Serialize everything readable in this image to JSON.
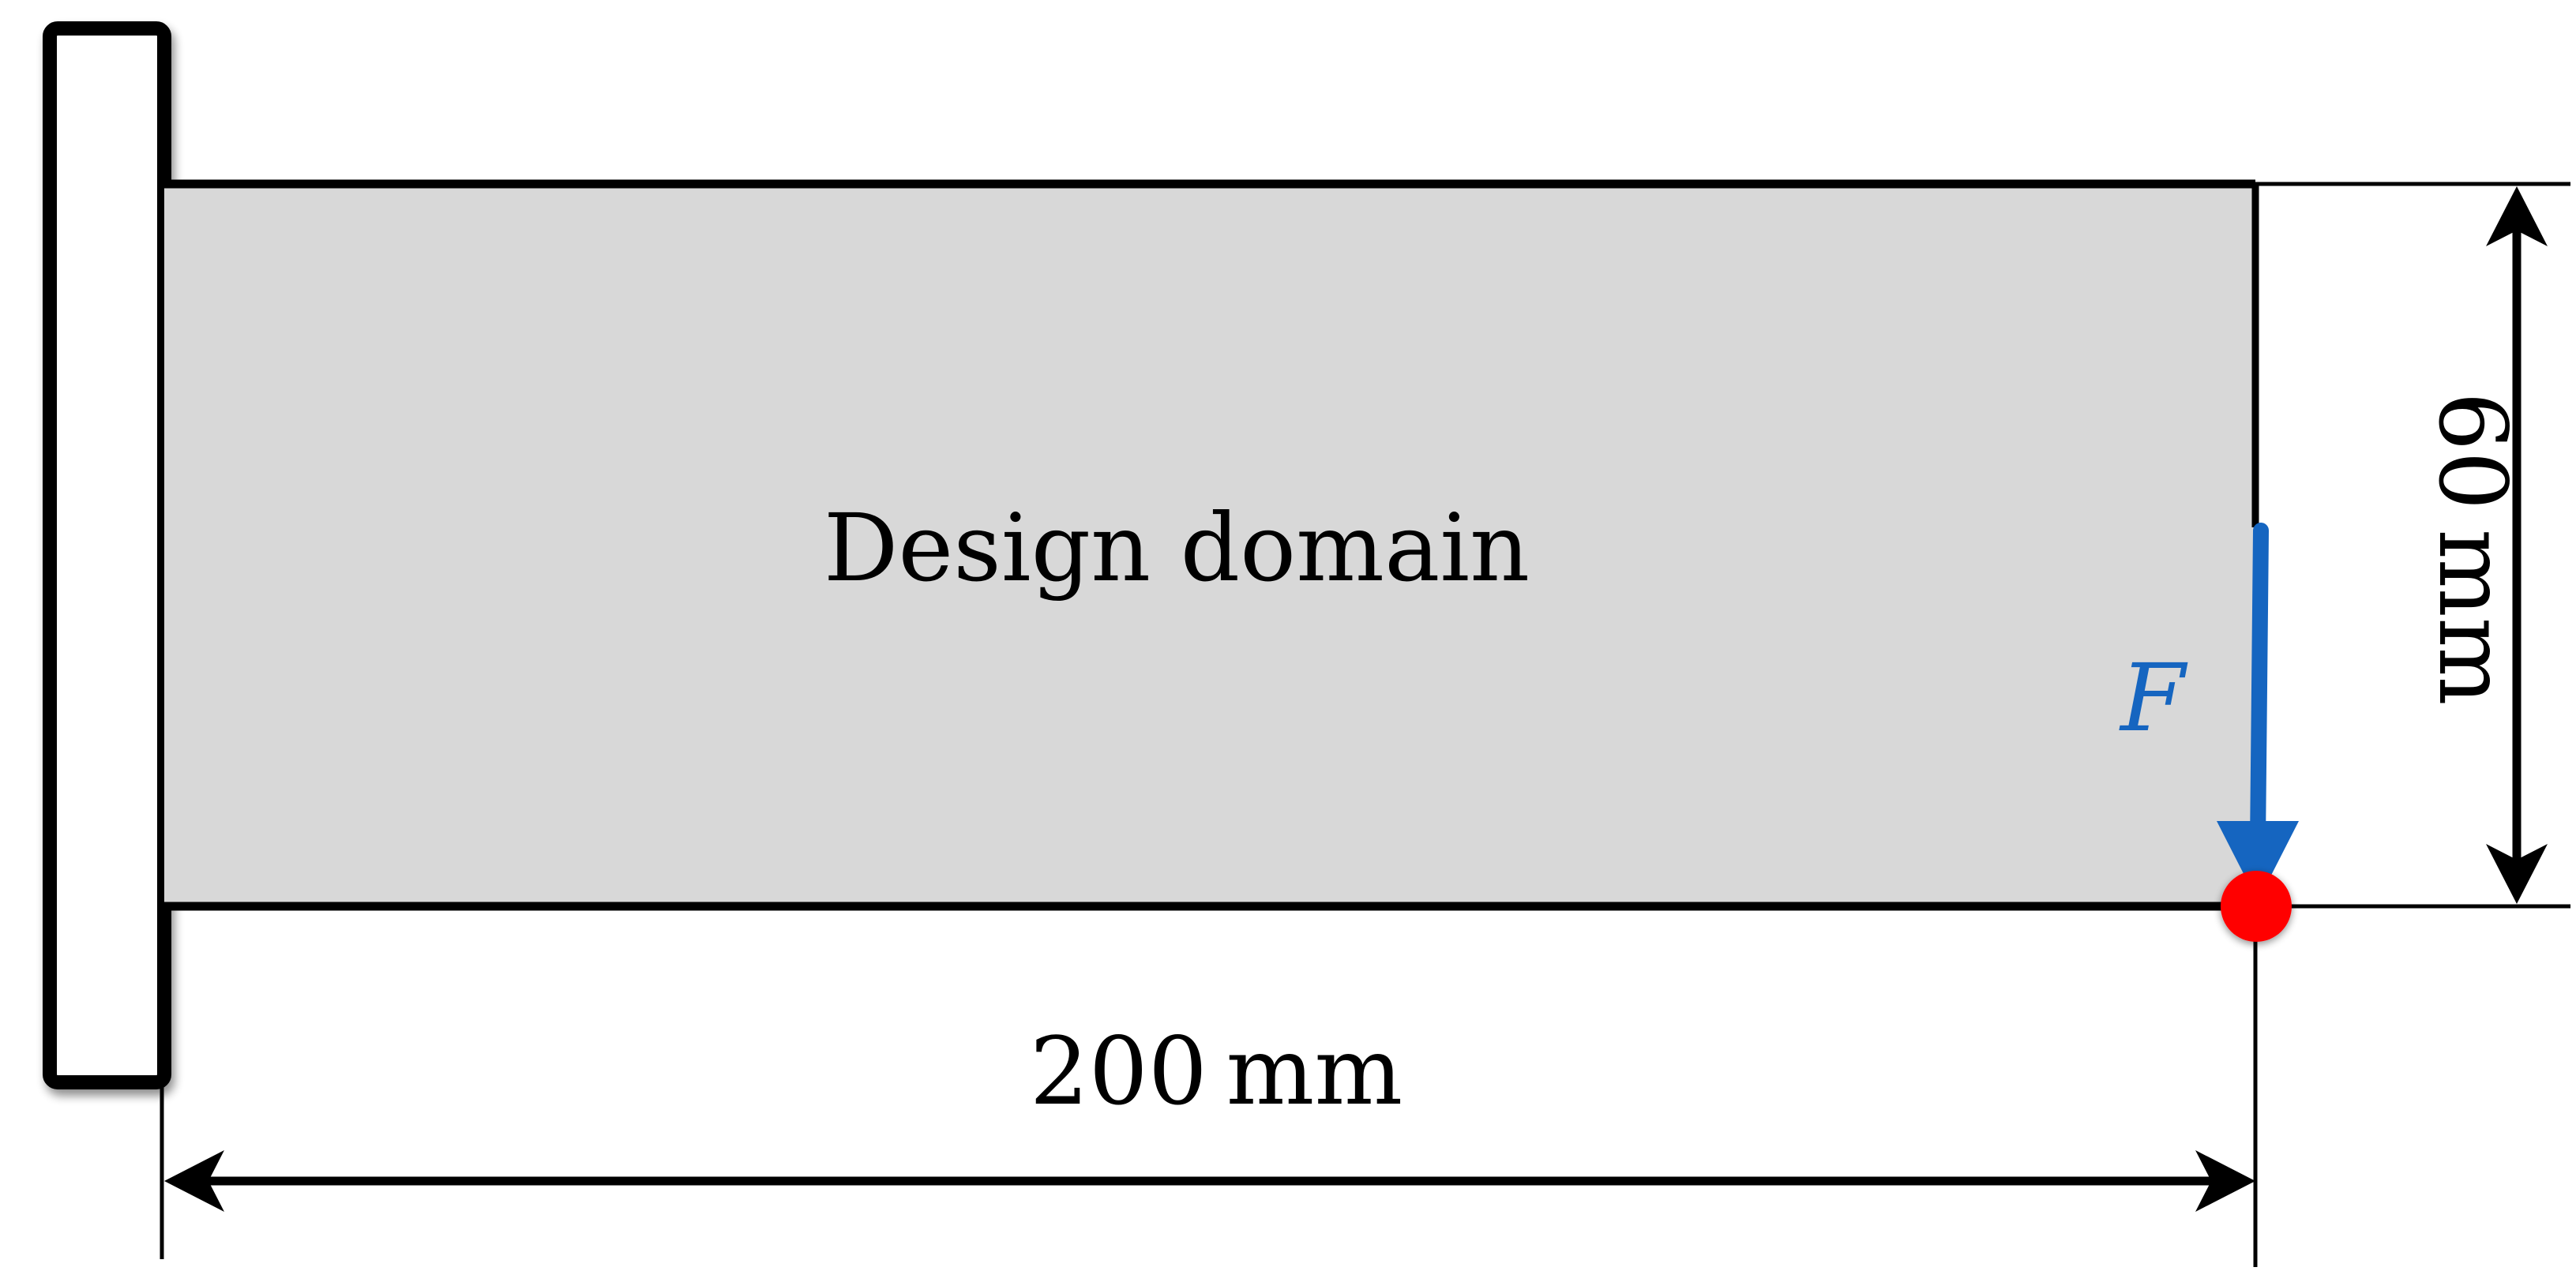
{
  "domain_label": "Design domain",
  "force_label": "F",
  "width_dimension": "200 mm",
  "height_dimension": "60 mm",
  "colors": {
    "domain_fill": "#d8d8d8",
    "outline": "#000000",
    "force_arrow": "#1565c0",
    "load_point": "#ff0000",
    "background": "#ffffff"
  },
  "icons": {
    "support": "fixed-wall-support",
    "load": "downward-force-arrow",
    "load_point": "red-dot"
  }
}
